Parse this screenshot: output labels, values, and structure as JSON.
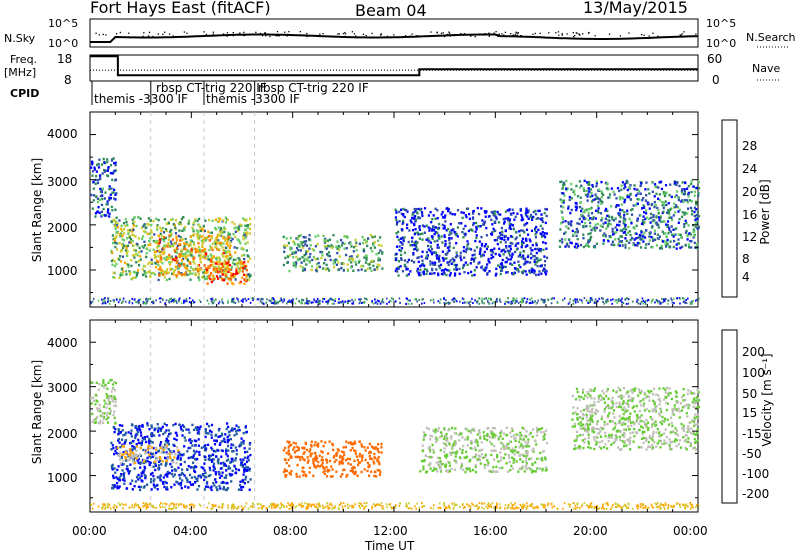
{
  "header": {
    "station": "Fort Hays East (fitACF)",
    "beam": "Beam 04",
    "date": "13/May/2015"
  },
  "top_panels": {
    "nsky_label": "N.Sky",
    "nsky_ticks": [
      "10^5",
      "10^0"
    ],
    "freq_label_line1": "Freq.",
    "freq_label_line2": "[MHz]",
    "freq_ticks": [
      "18",
      "8"
    ],
    "cpid_label": "CPID",
    "nsearch_label": "N.Search",
    "nsearch_ticks": [
      "10^5",
      "10^0"
    ],
    "nave_label": "Nave",
    "nave_ticks": [
      "60",
      "0"
    ],
    "cpid_entries": [
      {
        "text": "themis -3300 IF",
        "time_h": 0.0
      },
      {
        "text": "rbsp CT-trig 220 IF",
        "time_h": 2.4
      },
      {
        "text": "themis -3300 IF",
        "time_h": 4.5
      },
      {
        "text": "rbsp CT-trig 220 IF",
        "time_h": 6.5
      }
    ],
    "freq_steps": [
      [
        0.0,
        17.5
      ],
      [
        1.1,
        10.2
      ],
      [
        13.0,
        12.5
      ],
      [
        24.0,
        12.5
      ]
    ],
    "nave_dotted_level": 25
  },
  "power_panel": {
    "ylabel": "Slant Range [km]",
    "yticks": [
      "4000",
      "3000",
      "2000",
      "1000"
    ],
    "colorbar_label": "Power [dB]",
    "colorbar_ticks": [
      "28",
      "24",
      "20",
      "16",
      "12",
      "8",
      "4"
    ],
    "colors": [
      "#0000ff",
      "#2f4fa8",
      "#2e8b57",
      "#66cc66",
      "#cccc33",
      "#ffa500",
      "#ff6a00",
      "#ff0000"
    ]
  },
  "velocity_panel": {
    "ylabel": "Slant Range [km]",
    "yticks": [
      "4000",
      "3000",
      "2000",
      "1000"
    ],
    "colorbar_label": "Velocity [m s⁻¹]",
    "colorbar_ticks": [
      "200",
      "100",
      "50",
      "15",
      "-15",
      "-50",
      "-100",
      "-200"
    ],
    "colors": [
      "#0000ff",
      "#1e5aa0",
      "#2e8b57",
      "#66cc33",
      "#c0c0b8",
      "#ffa500",
      "#ff6a00",
      "#ff3b00",
      "#ff0000"
    ]
  },
  "xaxis": {
    "ticks": [
      "00:00",
      "04:00",
      "08:00",
      "12:00",
      "16:00",
      "20:00",
      "00:00"
    ],
    "label": "Time UT"
  },
  "chart_data": {
    "type": "heatmap",
    "title": "Fort Hays East (fitACF) Beam 04 13/May/2015",
    "xlabel": "Time UT",
    "ylabel": "Slant Range [km]",
    "xlim": [
      0,
      24
    ],
    "ylim": [
      180,
      4500
    ],
    "series": [
      {
        "name": "Power [dB]",
        "regions": [
          {
            "t": [
              0.0,
              1.0
            ],
            "range": [
              2200,
              3500
            ],
            "value": 8
          },
          {
            "t": [
              0.8,
              6.3
            ],
            "range": [
              800,
              2200
            ],
            "value": 16
          },
          {
            "t": [
              2.5,
              5.5
            ],
            "range": [
              900,
              1800
            ],
            "value": 24
          },
          {
            "t": [
              4.5,
              6.2
            ],
            "range": [
              700,
              1200
            ],
            "value": 28
          },
          {
            "t": [
              7.6,
              11.5
            ],
            "range": [
              1000,
              1800
            ],
            "value": 14
          },
          {
            "t": [
              12.0,
              18.0
            ],
            "range": [
              900,
              2400
            ],
            "value": 6
          },
          {
            "t": [
              18.5,
              24.0
            ],
            "range": [
              1500,
              3000
            ],
            "value": 10
          }
        ]
      },
      {
        "name": "Velocity [m s⁻¹]",
        "regions": [
          {
            "t": [
              0.0,
              1.0
            ],
            "range": [
              2200,
              3200
            ],
            "value": 0
          },
          {
            "t": [
              0.8,
              6.3
            ],
            "range": [
              700,
              2200
            ],
            "value": 150
          },
          {
            "t": [
              1.0,
              3.5
            ],
            "range": [
              1300,
              1700
            ],
            "value": -30
          },
          {
            "t": [
              7.6,
              11.5
            ],
            "range": [
              1000,
              1800
            ],
            "value": -120
          },
          {
            "t": [
              13.0,
              18.0
            ],
            "range": [
              1100,
              2100
            ],
            "value": 0
          },
          {
            "t": [
              19.0,
              24.0
            ],
            "range": [
              1600,
              3000
            ],
            "value": 0
          }
        ]
      }
    ]
  }
}
